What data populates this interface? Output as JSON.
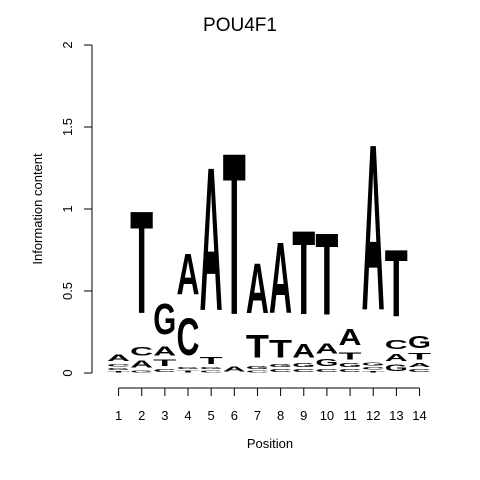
{
  "chart_data": {
    "type": "sequence-logo",
    "title": "POU4F1",
    "xlabel": "Position",
    "ylabel": "Information content",
    "ylim": [
      0,
      2
    ],
    "yticks": [
      "0",
      "0.5",
      "1",
      "1.5",
      "2"
    ],
    "positions": [
      "1",
      "2",
      "3",
      "4",
      "5",
      "6",
      "7",
      "8",
      "9",
      "10",
      "11",
      "12",
      "13",
      "14"
    ],
    "colors": {
      "A": "#00e000",
      "C": "#0000e0",
      "G": "#f0a000",
      "T": "#ff0000"
    },
    "stacks": [
      [
        [
          "T",
          0.015
        ],
        [
          "G",
          0.02
        ],
        [
          "C",
          0.025
        ],
        [
          "A",
          0.06
        ]
      ],
      [
        [
          "G",
          0.02
        ],
        [
          "A",
          0.07
        ],
        [
          "C",
          0.08
        ],
        [
          "T",
          1.0
        ]
      ],
      [
        [
          "C",
          0.03
        ],
        [
          "T",
          0.06
        ],
        [
          "A",
          0.09
        ],
        [
          "G",
          0.3
        ]
      ],
      [
        [
          "T",
          0.02
        ],
        [
          "G",
          0.02
        ],
        [
          "C",
          0.36
        ],
        [
          "A",
          0.4
        ]
      ],
      [
        [
          "C",
          0.02
        ],
        [
          "G",
          0.02
        ],
        [
          "T",
          0.07
        ],
        [
          "A",
          1.4
        ]
      ],
      [
        [
          "A",
          0.05
        ],
        [
          "T",
          1.58
        ]
      ],
      [
        [
          "C",
          0.02
        ],
        [
          "G",
          0.03
        ],
        [
          "T",
          0.22
        ],
        [
          "A",
          0.49
        ]
      ],
      [
        [
          "C",
          0.03
        ],
        [
          "G",
          0.03
        ],
        [
          "T",
          0.17
        ],
        [
          "A",
          0.69
        ]
      ],
      [
        [
          "C",
          0.03
        ],
        [
          "G",
          0.04
        ],
        [
          "A",
          0.13
        ],
        [
          "T",
          0.82
        ]
      ],
      [
        [
          "C",
          0.03
        ],
        [
          "G",
          0.07
        ],
        [
          "A",
          0.1
        ],
        [
          "T",
          0.8
        ]
      ],
      [
        [
          "C",
          0.03
        ],
        [
          "G",
          0.04
        ],
        [
          "T",
          0.07
        ],
        [
          "A",
          0.16
        ]
      ],
      [
        [
          "T",
          0.015
        ],
        [
          "C",
          0.025
        ],
        [
          "G",
          0.03
        ],
        [
          "A",
          1.62
        ]
      ],
      [
        [
          "G",
          0.06
        ],
        [
          "A",
          0.07
        ],
        [
          "C",
          0.09
        ],
        [
          "T",
          0.65
        ]
      ],
      [
        [
          "C",
          0.03
        ],
        [
          "A",
          0.04
        ],
        [
          "T",
          0.06
        ],
        [
          "G",
          0.12
        ]
      ]
    ]
  }
}
